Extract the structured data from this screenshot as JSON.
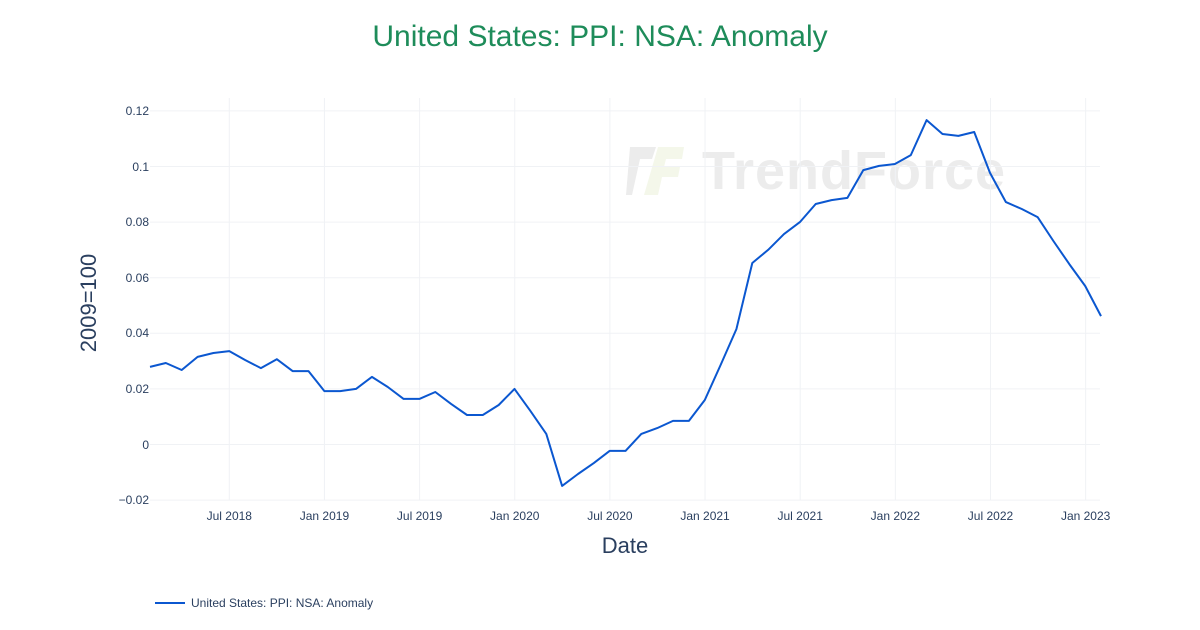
{
  "title": "United States: PPI: NSA: Anomaly",
  "watermark": "TrendForce",
  "axes": {
    "xlabel": "Date",
    "ylabel": "2009=100",
    "yticks": [
      {
        "label": "0.12",
        "value": 0.12
      },
      {
        "label": "0.1",
        "value": 0.1
      },
      {
        "label": "0.08",
        "value": 0.08
      },
      {
        "label": "0.06",
        "value": 0.06
      },
      {
        "label": "0.04",
        "value": 0.04
      },
      {
        "label": "0.02",
        "value": 0.02
      },
      {
        "label": "0",
        "value": 0
      },
      {
        "label": "−0.02",
        "value": -0.02
      }
    ],
    "xticks": [
      {
        "label": "Jul 2018",
        "index": 5
      },
      {
        "label": "Jan 2019",
        "index": 11
      },
      {
        "label": "Jul 2019",
        "index": 17
      },
      {
        "label": "Jan 2020",
        "index": 23
      },
      {
        "label": "Jul 2020",
        "index": 29
      },
      {
        "label": "Jan 2021",
        "index": 35
      },
      {
        "label": "Jul 2021",
        "index": 41
      },
      {
        "label": "Jan 2022",
        "index": 47
      },
      {
        "label": "Jul 2022",
        "index": 53
      },
      {
        "label": "Jan 2023",
        "index": 59
      }
    ]
  },
  "legend": {
    "items": [
      {
        "label": "United States: PPI: NSA: Anomaly",
        "color": "#0b57d0"
      }
    ]
  },
  "colors": {
    "title": "#1e8c5a",
    "line": "#0b57d0",
    "grid": "#f0f2f5",
    "text": "#2a3f5f"
  },
  "chart_data": {
    "type": "line",
    "title": "United States: PPI: NSA: Anomaly",
    "xlabel": "Date",
    "ylabel": "2009=100",
    "ylim": [
      -0.022,
      0.125
    ],
    "grid": true,
    "legend_position": "bottom-left",
    "x": [
      "2018-02",
      "2018-03",
      "2018-04",
      "2018-05",
      "2018-06",
      "2018-07",
      "2018-08",
      "2018-09",
      "2018-10",
      "2018-11",
      "2018-12",
      "2019-01",
      "2019-02",
      "2019-03",
      "2019-04",
      "2019-05",
      "2019-06",
      "2019-07",
      "2019-08",
      "2019-09",
      "2019-10",
      "2019-11",
      "2019-12",
      "2020-01",
      "2020-02",
      "2020-03",
      "2020-04",
      "2020-05",
      "2020-06",
      "2020-07",
      "2020-08",
      "2020-09",
      "2020-10",
      "2020-11",
      "2020-12",
      "2021-01",
      "2021-02",
      "2021-03",
      "2021-04",
      "2021-05",
      "2021-06",
      "2021-07",
      "2021-08",
      "2021-09",
      "2021-10",
      "2021-11",
      "2021-12",
      "2022-01",
      "2022-02",
      "2022-03",
      "2022-04",
      "2022-05",
      "2022-06",
      "2022-07",
      "2022-08",
      "2022-09",
      "2022-10",
      "2022-11",
      "2022-12",
      "2023-01",
      "2023-02"
    ],
    "series": [
      {
        "name": "United States: PPI: NSA: Anomaly",
        "values": [
          0.0279,
          0.0293,
          0.0268,
          0.0315,
          0.0329,
          0.0336,
          0.0304,
          0.0275,
          0.0307,
          0.0264,
          0.0264,
          0.0192,
          0.0192,
          0.02,
          0.0243,
          0.0207,
          0.0164,
          0.0164,
          0.0189,
          0.0146,
          0.0106,
          0.0106,
          0.0142,
          0.02,
          0.0121,
          0.0038,
          -0.0149,
          -0.0106,
          -0.0067,
          -0.0023,
          -0.0023,
          0.0038,
          0.0059,
          0.0085,
          0.0085,
          0.016,
          0.0286,
          0.0415,
          0.0653,
          0.07,
          0.0757,
          0.08,
          0.0865,
          0.0879,
          0.0887,
          0.0987,
          0.1002,
          0.1009,
          0.1041,
          0.1167,
          0.1117,
          0.111,
          0.1124,
          0.0977,
          0.0872,
          0.0847,
          0.0818,
          0.0732,
          0.0649,
          0.057,
          0.0462
        ]
      }
    ]
  }
}
